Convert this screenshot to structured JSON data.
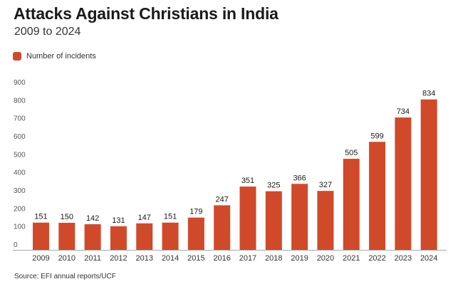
{
  "chart_data": {
    "type": "bar",
    "title": "Attacks Against Christians in India",
    "subtitle": "2009 to 2024",
    "categories": [
      "2009",
      "2010",
      "2011",
      "2012",
      "2013",
      "2014",
      "2015",
      "2016",
      "2017",
      "2018",
      "2019",
      "2020",
      "2021",
      "2022",
      "2023",
      "2024"
    ],
    "series": [
      {
        "name": "Number of incidents",
        "color": "#d04a2a",
        "values": [
          151,
          150,
          142,
          131,
          147,
          151,
          179,
          247,
          351,
          325,
          366,
          327,
          505,
          599,
          734,
          834
        ]
      }
    ],
    "xlabel": "",
    "ylabel": "",
    "ylim": [
      0,
      900
    ],
    "yticks": [
      0,
      100,
      200,
      300,
      400,
      500,
      600,
      700,
      800,
      900
    ],
    "grid": false,
    "legend_position": "top-left",
    "data_labels": true,
    "source": "Source: EFI annual reports/UCF"
  }
}
